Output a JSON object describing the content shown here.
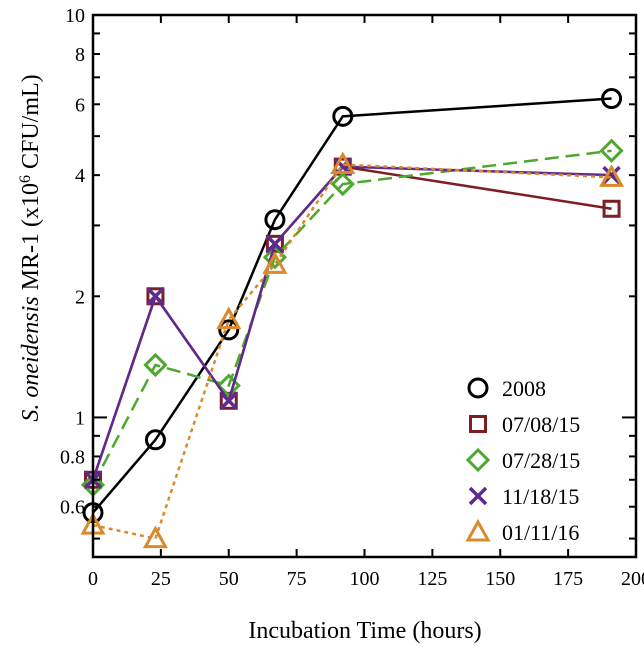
{
  "chart_data": {
    "type": "line",
    "xlabel": "Incubation Time (hours)",
    "ylabel_parts": [
      {
        "text": "S. oneidensis",
        "style": "italic"
      },
      {
        "text": " MR-1 (x10",
        "style": "normal"
      },
      {
        "text": "6",
        "style": "sup"
      },
      {
        "text": " CFU/mL)",
        "style": "normal"
      }
    ],
    "xlim": [
      0,
      200
    ],
    "ylim": [
      0.45,
      10
    ],
    "yscale": "log",
    "grid": false,
    "legend_position": "bottom-right",
    "xticks": [
      0,
      25,
      50,
      75,
      100,
      125,
      150,
      175,
      200
    ],
    "xtick_labels": [
      "0",
      "25",
      "50",
      "75",
      "100",
      "125",
      "150",
      "175",
      "200"
    ],
    "yticks_labeled": [
      0.6,
      0.8,
      1,
      2,
      4,
      6,
      8,
      10
    ],
    "ytick_labels": [
      "0.6",
      "0.8",
      "1",
      "2",
      "4",
      "6",
      "8",
      "10"
    ],
    "yticks_major": [
      1,
      10
    ],
    "series": [
      {
        "name": "2008",
        "color": "#000000",
        "marker": "circle",
        "dash": "solid",
        "x": [
          0,
          23,
          50,
          67,
          92,
          191
        ],
        "y": [
          0.58,
          0.88,
          1.65,
          3.1,
          5.6,
          6.2
        ]
      },
      {
        "name": "07/08/15",
        "color": "#7b1f24",
        "marker": "square",
        "dash": "solid",
        "x": [
          0,
          23,
          50,
          67,
          92,
          191
        ],
        "y": [
          0.7,
          2.0,
          1.1,
          2.7,
          4.2,
          3.3
        ]
      },
      {
        "name": "07/28/15",
        "color": "#4ea72e",
        "marker": "diamond",
        "dash": "dashed",
        "x": [
          0,
          23,
          50,
          67,
          92,
          191
        ],
        "y": [
          0.68,
          1.35,
          1.2,
          2.5,
          3.8,
          4.6
        ]
      },
      {
        "name": "11/18/15",
        "color": "#5e2a8e",
        "marker": "x",
        "dash": "solid",
        "x": [
          0,
          23,
          50,
          67,
          92,
          191
        ],
        "y": [
          0.7,
          2.0,
          1.1,
          2.7,
          4.2,
          4.0
        ]
      },
      {
        "name": "01/11/16",
        "color": "#d98a2b",
        "marker": "triangle",
        "dash": "dotted",
        "x": [
          0,
          23,
          50,
          67,
          92,
          191
        ],
        "y": [
          0.54,
          0.5,
          1.75,
          2.4,
          4.25,
          3.95
        ]
      }
    ]
  }
}
